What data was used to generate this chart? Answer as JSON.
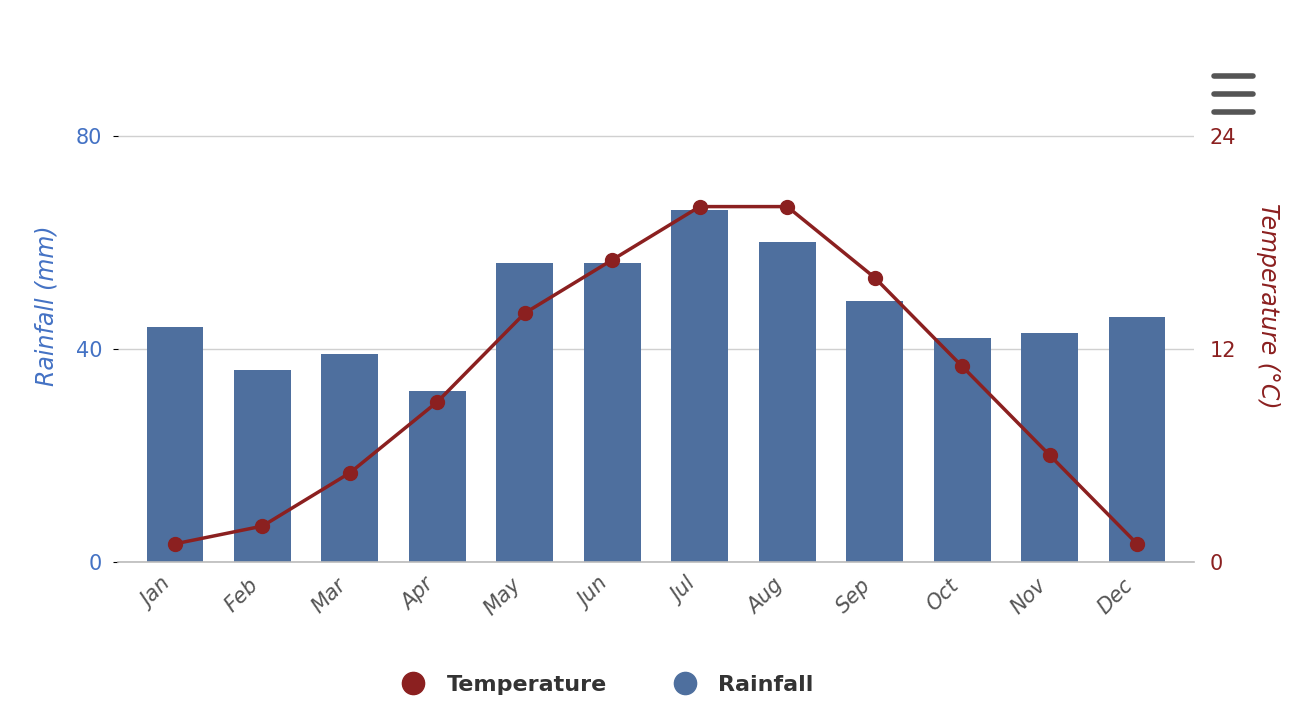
{
  "months": [
    "Jan",
    "Feb",
    "Mar",
    "Apr",
    "May",
    "Jun",
    "Jul",
    "Aug",
    "Sep",
    "Oct",
    "Nov",
    "Dec"
  ],
  "rainfall_mm": [
    44,
    36,
    39,
    32,
    56,
    56,
    66,
    60,
    49,
    42,
    43,
    46
  ],
  "temperature_c": [
    1,
    2,
    5,
    9,
    14,
    17,
    20,
    20,
    16,
    11,
    6,
    1
  ],
  "bar_color": "#4e6f9e",
  "line_color": "#8b2020",
  "marker_color": "#8b2020",
  "left_ylabel": "Rainfall (mm)",
  "right_ylabel": "Temperature (°C)",
  "left_ylabel_color": "#4472c4",
  "right_ylabel_color": "#8b2020",
  "yticks_left": [
    0,
    40,
    80
  ],
  "yticks_right": [
    0,
    12,
    24
  ],
  "ylim_left": [
    0,
    96
  ],
  "ylim_right": [
    0,
    28.8
  ],
  "legend_temp_label": "Temperature",
  "legend_rain_label": "Rainfall",
  "background_color": "#ffffff",
  "grid_color": "#d0d0d0",
  "tick_label_fontsize": 15,
  "axis_label_fontsize": 17,
  "legend_fontsize": 16,
  "hamburger_color": "#555555",
  "xtick_color": "#555555"
}
